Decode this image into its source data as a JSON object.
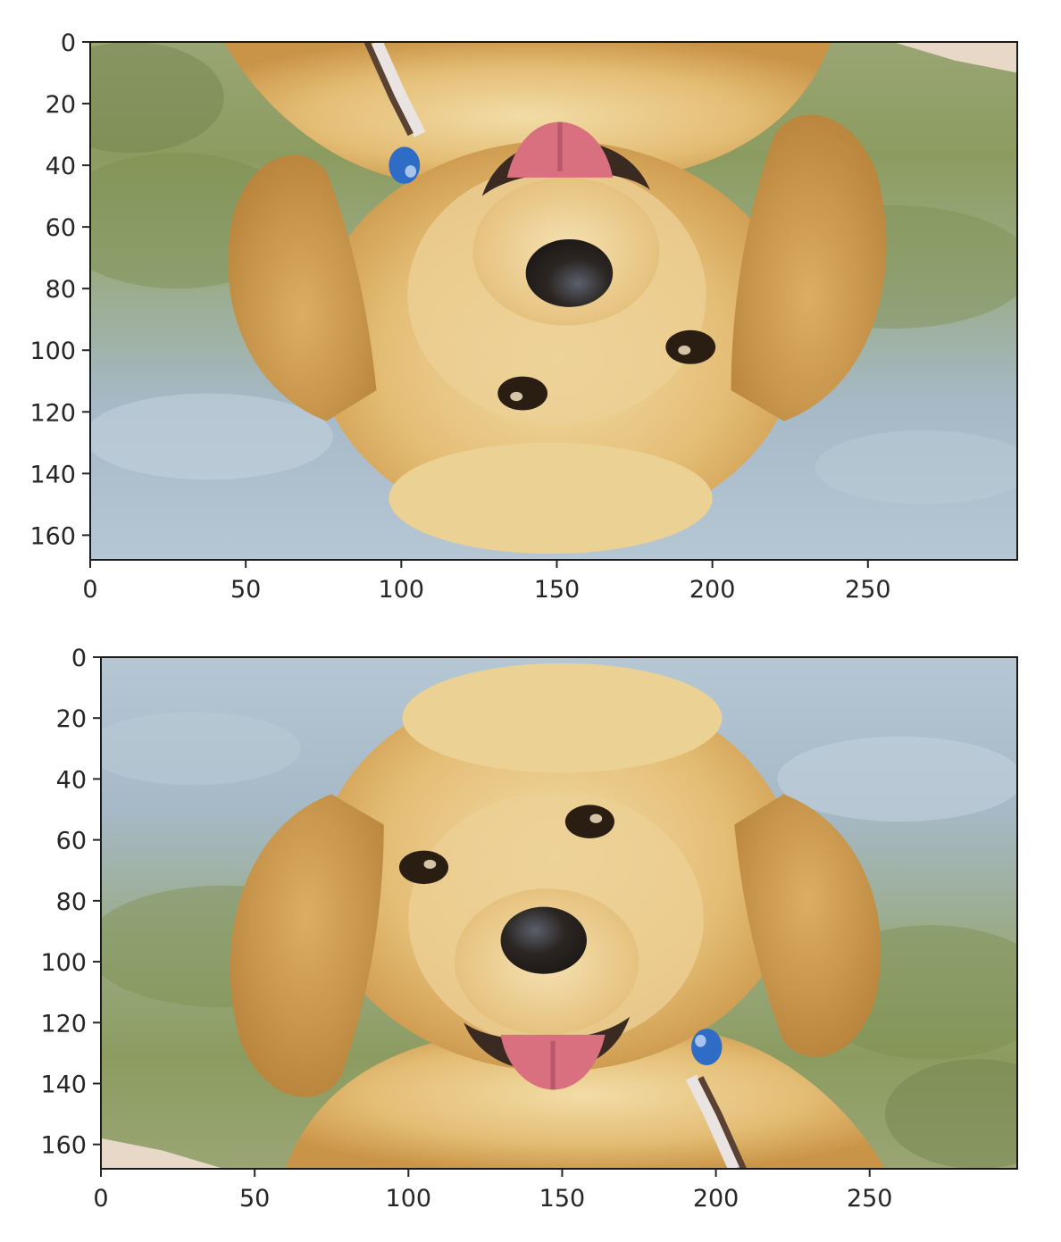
{
  "chart_data": [
    {
      "type": "image",
      "content": "golden retriever puppy photo, flipped upside down",
      "orientation": "upside-down",
      "extent": {
        "x": [
          0,
          298
        ],
        "y": [
          0,
          168
        ]
      },
      "xticks": [
        0,
        50,
        100,
        150,
        200,
        250
      ],
      "yticks": [
        0,
        20,
        40,
        60,
        80,
        100,
        120,
        140,
        160
      ],
      "y_inverted": true,
      "grid": false,
      "title": "",
      "xlabel": "",
      "ylabel": ""
    },
    {
      "type": "image",
      "content": "golden retriever puppy photo, upright",
      "orientation": "upright",
      "extent": {
        "x": [
          0,
          298
        ],
        "y": [
          0,
          168
        ]
      },
      "xticks": [
        0,
        50,
        100,
        150,
        200,
        250
      ],
      "yticks": [
        0,
        20,
        40,
        60,
        80,
        100,
        120,
        140,
        160
      ],
      "y_inverted": true,
      "grid": false,
      "title": "",
      "xlabel": "",
      "ylabel": ""
    }
  ],
  "colors": {
    "sky": "#a9bfcf",
    "grass": "#8e9f5f",
    "fur_light": "#f0d9a0",
    "fur_mid": "#ddb266",
    "fur_dark": "#b07d3a",
    "nose": "#2b2622",
    "tongue": "#d9707f",
    "tag_blue": "#2f6cc6"
  }
}
